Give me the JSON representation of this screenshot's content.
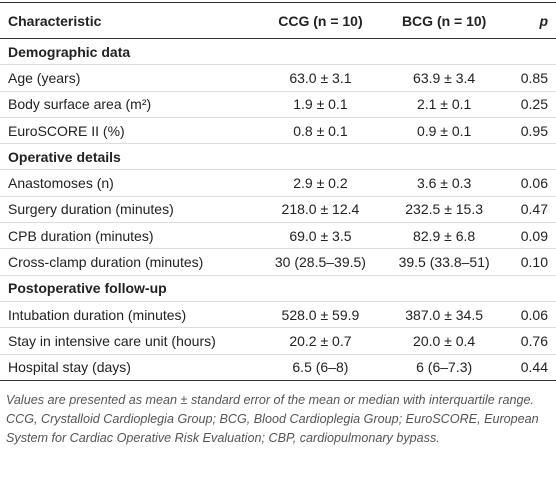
{
  "table": {
    "header": [
      "Characteristic",
      "CCG (n = 10)",
      "BCG (n = 10)",
      "p"
    ],
    "sections": [
      {
        "title": "Demographic data",
        "rows": [
          [
            "Age (years)",
            "63.0 ± 3.1",
            "63.9 ± 3.4",
            "0.85"
          ],
          [
            "Body surface area (m²)",
            "1.9 ± 0.1",
            "2.1 ± 0.1",
            "0.25"
          ],
          [
            "EuroSCORE II (%)",
            "0.8 ± 0.1",
            "0.9 ± 0.1",
            "0.95"
          ]
        ]
      },
      {
        "title": "Operative details",
        "rows": [
          [
            "Anastomoses (n)",
            "2.9 ± 0.2",
            "3.6 ± 0.3",
            "0.06"
          ],
          [
            "Surgery duration (minutes)",
            "218.0 ± 12.4",
            "232.5 ± 15.3",
            "0.47"
          ],
          [
            "CPB duration (minutes)",
            "69.0 ± 3.5",
            "82.9 ± 6.8",
            "0.09"
          ],
          [
            "Cross-clamp duration (minutes)",
            "30 (28.5–39.5)",
            "39.5 (33.8–51)",
            "0.10"
          ]
        ]
      },
      {
        "title": "Postoperative follow-up",
        "rows": [
          [
            "Intubation duration (minutes)",
            "528.0 ± 59.9",
            "387.0 ± 34.5",
            "0.06"
          ],
          [
            "Stay in intensive care unit (hours)",
            "20.2 ± 0.7",
            "20.0 ± 0.4",
            "0.76"
          ],
          [
            "Hospital stay (days)",
            "6.5 (6–8)",
            "6 (6–7.3)",
            "0.44"
          ]
        ]
      }
    ],
    "footnote": "Values are presented as mean ± standard error of the mean or median with interquartile range. CCG, Crystalloid Cardioplegia Group; BCG, Blood Cardioplegia Group; EuroSCORE, European System for Cardiac Operative Risk Evaluation; CBP, cardiopulmonary bypass."
  }
}
